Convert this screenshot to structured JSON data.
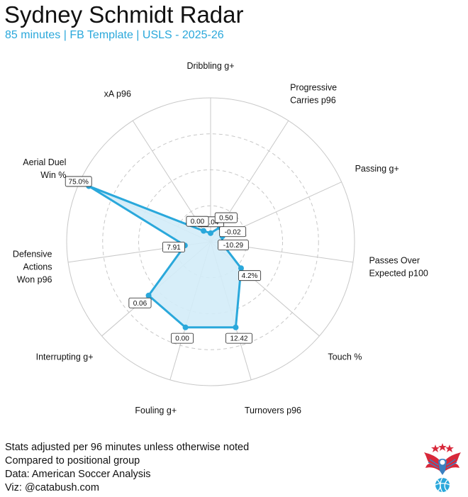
{
  "header": {
    "title": "Sydney Schmidt Radar",
    "subtitle": "85 minutes | FB Template | USLS - 2025-26"
  },
  "caption": {
    "lines": [
      "Stats adjusted per 96 minutes unless otherwise noted",
      "Compared to positional group",
      "Data: American Soccer Analysis",
      "Viz: @catabush.com"
    ]
  },
  "colors": {
    "accent": "#2aa8db",
    "fill": "#d3ecf8",
    "grid": "#c8c8c8",
    "logo_red": "#d8283a",
    "logo_blue": "#3a7fc0"
  },
  "logo": {
    "icon": "eagle-soccer-ball-logo"
  },
  "chart_data": {
    "type": "radar",
    "grid": true,
    "rings": [
      0.25,
      0.5,
      0.75,
      1.0
    ],
    "axes": [
      {
        "label": [
          "Dribbling g+"
        ],
        "value_label": "-0.04",
        "percentile": 0.06
      },
      {
        "label": [
          "Progressive",
          "Carries p96"
        ],
        "value_label": "0.50",
        "percentile": 0.12
      },
      {
        "label": [
          "Passing g+"
        ],
        "value_label": "-0.02",
        "percentile": 0.09
      },
      {
        "label": [
          "Passes Over",
          "Expected p100"
        ],
        "value_label": "-10.29",
        "percentile": 0.08
      },
      {
        "label": [
          "Touch %"
        ],
        "value_label": "4.2%",
        "percentile": 0.28
      },
      {
        "label": [
          "Turnovers p96"
        ],
        "value_label": "12.42",
        "percentile": 0.62
      },
      {
        "label": [
          "Fouling g+"
        ],
        "value_label": "0.00",
        "percentile": 0.62
      },
      {
        "label": [
          "Interrupting g+"
        ],
        "value_label": "0.06",
        "percentile": 0.57
      },
      {
        "label": [
          "Defensive",
          "Actions",
          "Won p96"
        ],
        "value_label": "7.91",
        "percentile": 0.18
      },
      {
        "label": [
          "Aerial Duel",
          "Win %"
        ],
        "value_label": "75.0%",
        "percentile": 0.93
      },
      {
        "label": [
          "xA p96"
        ],
        "value_label": "0.00",
        "percentile": 0.09
      }
    ]
  }
}
